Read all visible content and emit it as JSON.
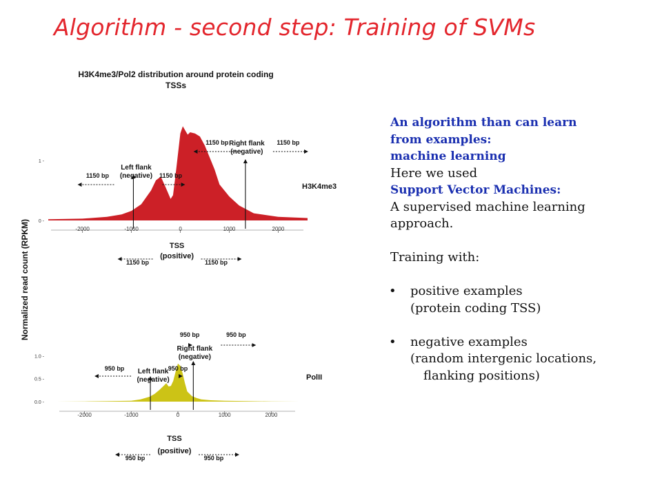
{
  "slide": {
    "title": "Algorithm - second step: Training of SVMs"
  },
  "chart_data": {
    "type": "area",
    "title": "H3K4me3/Pol2 distribution around protein coding TSSs",
    "ylabel": "Normalized read count (RPKM)",
    "panels": [
      {
        "series": "H3K4me3",
        "color": "#cc2027",
        "x": [
          -2700,
          -2000,
          -1500,
          -1200,
          -1000,
          -800,
          -600,
          -500,
          -400,
          -300,
          -200,
          -150,
          -100,
          -50,
          0,
          50,
          100,
          150,
          200,
          300,
          400,
          500,
          600,
          700,
          800,
          1000,
          1200,
          1500,
          2000,
          2600
        ],
        "y": [
          0.02,
          0.03,
          0.06,
          0.1,
          0.16,
          0.27,
          0.5,
          0.67,
          0.73,
          0.55,
          0.36,
          0.42,
          0.75,
          1.1,
          1.45,
          1.57,
          1.5,
          1.43,
          1.47,
          1.45,
          1.4,
          1.25,
          1.05,
          0.85,
          0.6,
          0.4,
          0.25,
          0.12,
          0.06,
          0.04
        ],
        "xticks": [
          -2000,
          -1000,
          0,
          1000,
          2000
        ],
        "xtick_labels": [
          "-2000",
          "-1000",
          "0",
          "1000",
          "2000"
        ],
        "yticks": [
          0,
          1
        ],
        "ytick_labels": [
          "0 -",
          "1 -"
        ],
        "ylim": [
          0,
          1.7
        ],
        "xlim": [
          -2700,
          2600
        ],
        "annotations": {
          "top_distance": "1150 bp",
          "right_flank": [
            "Right flank",
            "(negative)"
          ],
          "right_distance": "1150 bp",
          "left_distance": "1150 bp",
          "left_flank": [
            "Left flank",
            "(negative)"
          ],
          "inner_distance": "1150 bp",
          "tss": "TSS",
          "positive": "(positive)",
          "bottom_left_distance": "1150 bp",
          "bottom_right_distance": "1150 bp"
        }
      },
      {
        "series": "PolII",
        "color": "#ccc316",
        "x": [
          -2600,
          -2000,
          -1500,
          -1000,
          -800,
          -600,
          -500,
          -400,
          -300,
          -250,
          -200,
          -150,
          -100,
          -50,
          0,
          50,
          100,
          150,
          200,
          300,
          400,
          500,
          700,
          1000,
          1500,
          2000,
          2600
        ],
        "y": [
          0,
          0.005,
          0.01,
          0.02,
          0.05,
          0.11,
          0.17,
          0.25,
          0.35,
          0.4,
          0.33,
          0.34,
          0.45,
          0.65,
          0.83,
          0.78,
          0.62,
          0.4,
          0.22,
          0.12,
          0.08,
          0.05,
          0.03,
          0.02,
          0.01,
          0.005,
          0
        ],
        "xticks": [
          -2000,
          -1000,
          0,
          1000,
          2000
        ],
        "xtick_labels": [
          "-2000",
          "-1000",
          "0",
          "1000",
          "2000"
        ],
        "yticks": [
          0,
          0.5,
          1
        ],
        "ytick_labels": [
          "0.0 -",
          "0.5 -",
          "1.0 -"
        ],
        "ylim": [
          0,
          1.2
        ],
        "xlim": [
          -2600,
          2600
        ],
        "annotations": {
          "top_distance": "950 bp",
          "right_flank": [
            "Right flank",
            "(negative)"
          ],
          "right_distance": "950 bp",
          "left_distance": "950 bp",
          "left_flank": [
            "Left flank",
            "(negative)"
          ],
          "inner_distance": "950 bp",
          "tss": "TSS",
          "positive": "(positive)",
          "bottom_left_distance": "950 bp",
          "bottom_right_distance": "950 bp"
        }
      }
    ]
  },
  "text_panel": {
    "line1": "An algorithm than can learn",
    "line2": "from examples:",
    "line3": "machine learning",
    "line4": "Here we used",
    "line5": "Support Vector Machines:",
    "line6": "A supervised machine learning",
    "line7": "approach.",
    "line8": "Training with:",
    "bullet_symbol": "•",
    "bullet1": "positive examples",
    "bullet1_sub": "(protein coding TSS)",
    "bullet2": "negative examples",
    "bullet2_sub1": "(random intergenic locations,",
    "bullet2_sub2": "flanking positions)"
  }
}
